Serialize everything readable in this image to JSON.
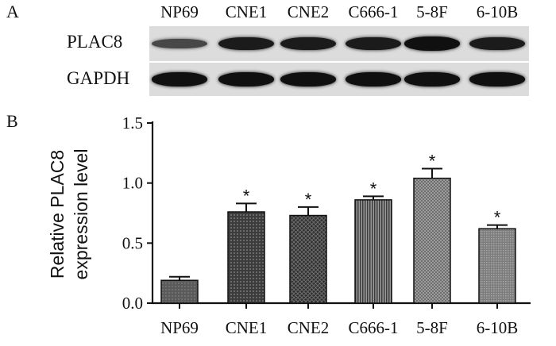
{
  "panel_a": {
    "letter": "A",
    "lanes": [
      "NP69",
      "CNE1",
      "CNE2",
      "C666-1",
      "5-8F",
      "6-10B"
    ],
    "rows": [
      {
        "label": "PLAC8",
        "intensity": [
          0.45,
          0.85,
          0.85,
          0.85,
          0.95,
          0.85
        ]
      },
      {
        "label": "GAPDH",
        "intensity": [
          0.95,
          0.95,
          0.95,
          0.95,
          0.95,
          0.95
        ]
      }
    ]
  },
  "panel_b": {
    "letter": "B"
  },
  "chart_data": {
    "type": "bar",
    "categories": [
      "NP69",
      "CNE1",
      "CNE2",
      "C666-1",
      "5-8F",
      "6-10B"
    ],
    "values": [
      0.19,
      0.76,
      0.73,
      0.86,
      1.04,
      0.62
    ],
    "errors": [
      0.03,
      0.07,
      0.07,
      0.03,
      0.08,
      0.03
    ],
    "significance": [
      "",
      "*",
      "*",
      "*",
      "*",
      "*"
    ],
    "ylabel_lines": [
      "Relative PLAC8",
      "expression level"
    ],
    "ylim": [
      0,
      1.5
    ],
    "yticks": [
      "0.0",
      "0.5",
      "1.0",
      "1.5"
    ],
    "ytick_values": [
      0,
      0.5,
      1.0,
      1.5
    ],
    "grid": false,
    "bar_colors": [
      "#5e5e5e",
      "#4a4a4a",
      "#3a3a3a",
      "#6a6a6a",
      "#7a7a7a",
      "#8a8a8a"
    ]
  }
}
